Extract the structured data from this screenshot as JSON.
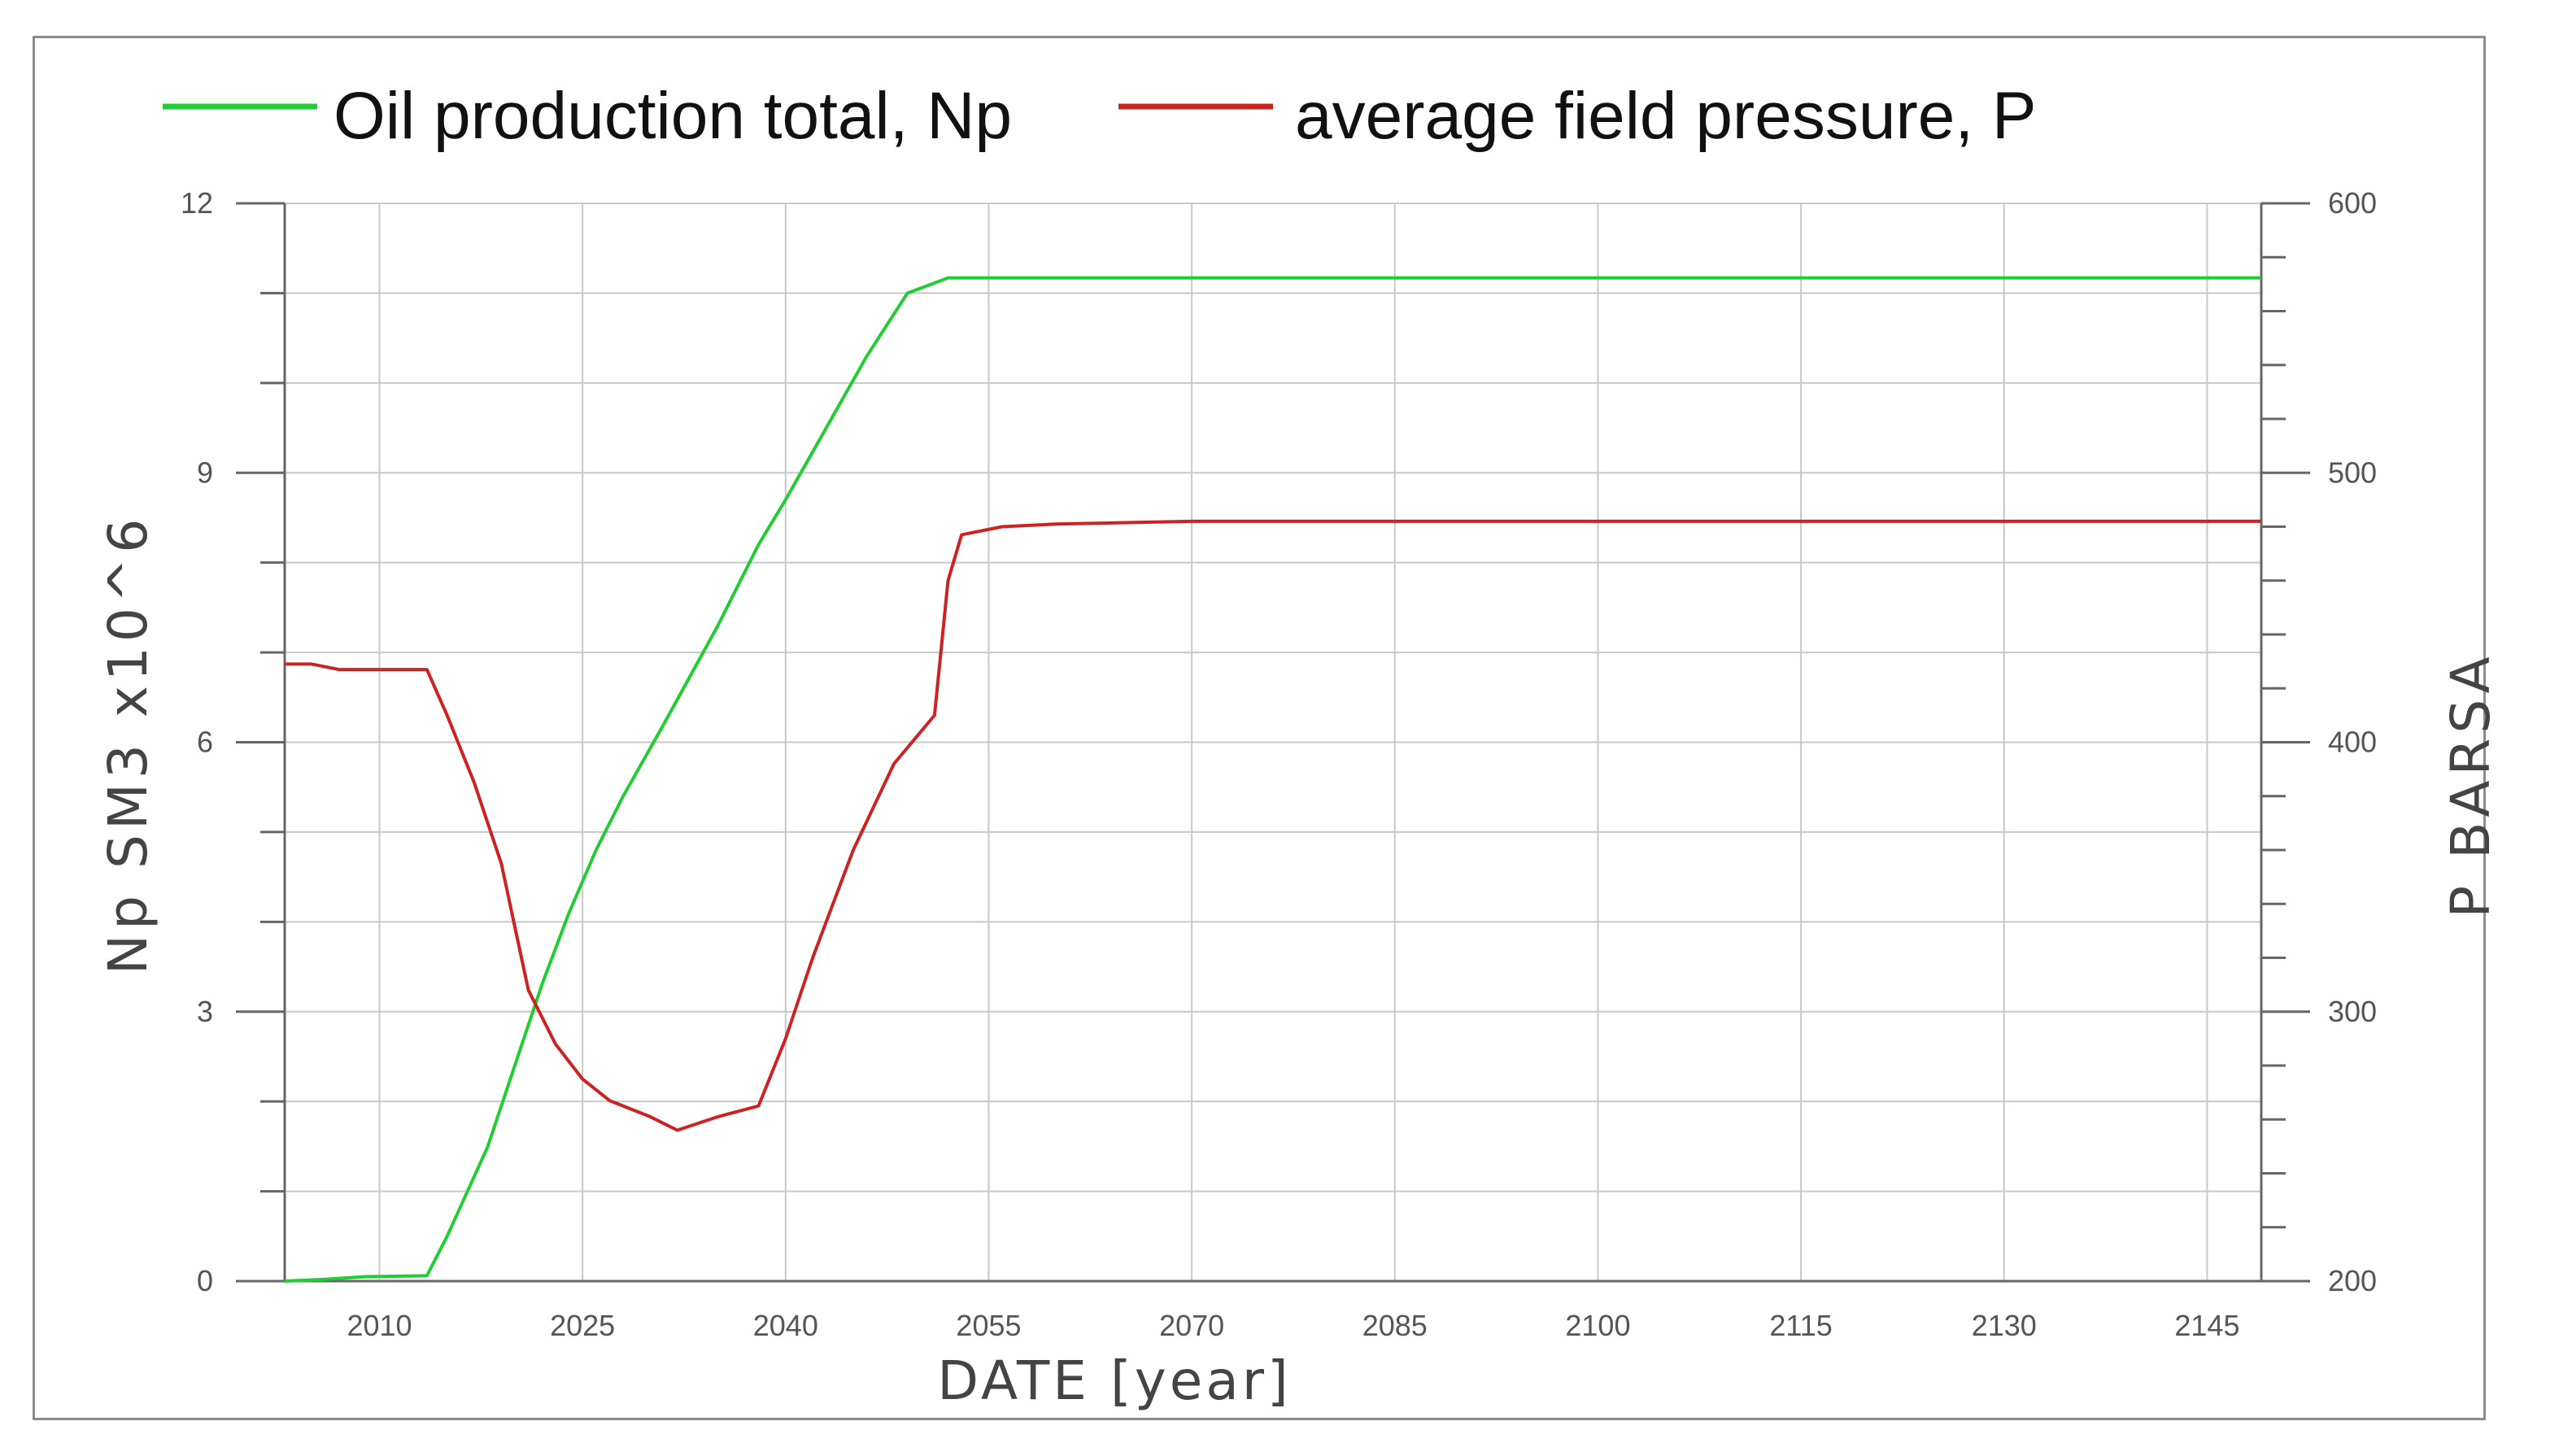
{
  "legend": {
    "oil_label": "Oil production total, Np",
    "pressure_label": "average field pressure, P"
  },
  "colors": {
    "oil": "#22cc33",
    "pressure": "#cc2222",
    "grid": "#c8c8c8",
    "axis": "#666666"
  },
  "chart_data": {
    "type": "line",
    "xlabel": "DATE [year]",
    "ylabel_left": "Np SM3 x10^6",
    "ylabel_right": "P BARSA",
    "xlim": [
      2003,
      2149
    ],
    "ylim_left": [
      0,
      12
    ],
    "ylim_right": [
      200,
      600
    ],
    "x_ticks": [
      2010,
      2025,
      2040,
      2055,
      2070,
      2085,
      2100,
      2115,
      2130,
      2145
    ],
    "y_left_ticks": [
      0,
      3,
      6,
      9,
      12
    ],
    "y_right_ticks": [
      200,
      300,
      400,
      500,
      600
    ],
    "grid": true,
    "legend_position": "top",
    "series": [
      {
        "name": "Oil production total, Np",
        "axis": "left",
        "color": "#22cc33",
        "points": [
          [
            2003,
            0.0
          ],
          [
            2006,
            0.02
          ],
          [
            2009,
            0.05
          ],
          [
            2013.5,
            0.06
          ],
          [
            2015,
            0.5
          ],
          [
            2018,
            1.5
          ],
          [
            2020,
            2.4
          ],
          [
            2022,
            3.3
          ],
          [
            2024,
            4.1
          ],
          [
            2026,
            4.8
          ],
          [
            2028,
            5.4
          ],
          [
            2031,
            6.2
          ],
          [
            2035,
            7.3
          ],
          [
            2038,
            8.2
          ],
          [
            2040,
            8.7
          ],
          [
            2043,
            9.5
          ],
          [
            2046,
            10.3
          ],
          [
            2049,
            11.0
          ],
          [
            2052,
            11.17
          ],
          [
            2070,
            11.17
          ],
          [
            2100,
            11.17
          ],
          [
            2149,
            11.17
          ]
        ]
      },
      {
        "name": "average field pressure, P",
        "axis": "right",
        "color": "#cc2222",
        "points": [
          [
            2003,
            429
          ],
          [
            2005,
            429
          ],
          [
            2007,
            427
          ],
          [
            2010,
            427
          ],
          [
            2013.5,
            427
          ],
          [
            2015,
            410
          ],
          [
            2017,
            385
          ],
          [
            2019,
            355
          ],
          [
            2021,
            308
          ],
          [
            2023,
            288
          ],
          [
            2025,
            275
          ],
          [
            2027,
            267
          ],
          [
            2030,
            261
          ],
          [
            2032,
            256
          ],
          [
            2035,
            261
          ],
          [
            2038,
            265
          ],
          [
            2040,
            290
          ],
          [
            2042,
            320
          ],
          [
            2045,
            360
          ],
          [
            2048,
            392
          ],
          [
            2051,
            410
          ],
          [
            2052,
            460
          ],
          [
            2053,
            477
          ],
          [
            2056,
            480
          ],
          [
            2060,
            481
          ],
          [
            2070,
            482
          ],
          [
            2100,
            482
          ],
          [
            2149,
            482
          ]
        ]
      }
    ]
  }
}
